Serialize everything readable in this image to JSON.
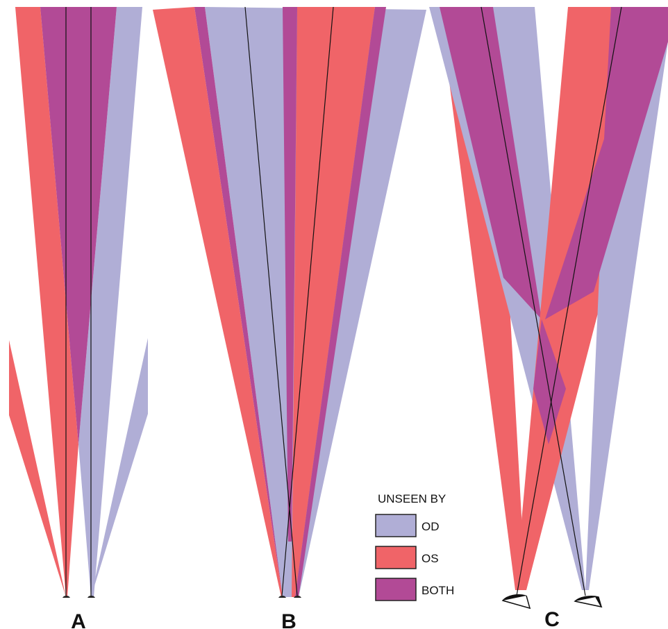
{
  "panels": [
    {
      "label": "A"
    },
    {
      "label": "B"
    },
    {
      "label": "C"
    }
  ],
  "legend": {
    "title": "UNSEEN BY",
    "items": [
      {
        "label": "OD",
        "color": "#b0aed6"
      },
      {
        "label": "OS",
        "color": "#f06468"
      },
      {
        "label": "BOTH",
        "color": "#b24a96"
      }
    ]
  }
}
